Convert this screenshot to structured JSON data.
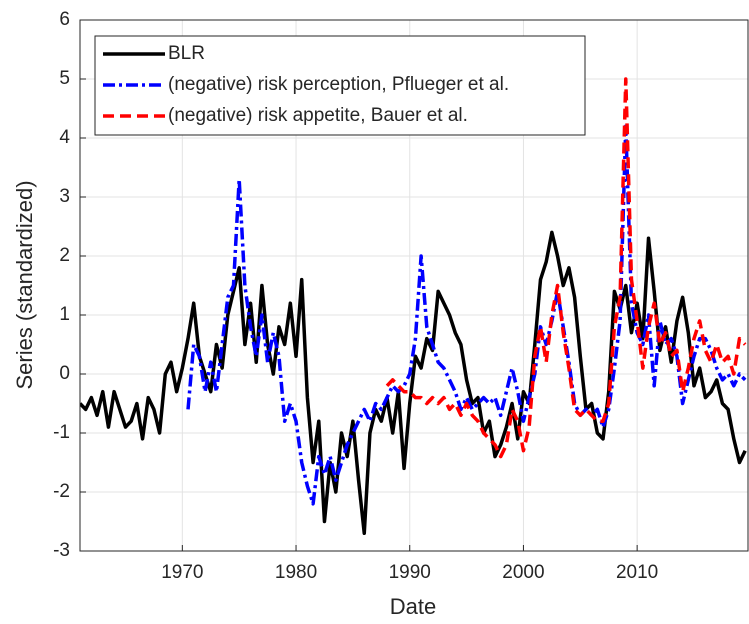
{
  "chart_data": {
    "type": "line",
    "xlabel": "Date",
    "ylabel": "Series (standardized)",
    "x": [
      1961,
      1961.5,
      1962,
      1962.5,
      1963,
      1963.5,
      1964,
      1964.5,
      1965,
      1965.5,
      1966,
      1966.5,
      1967,
      1967.5,
      1968,
      1968.5,
      1969,
      1969.5,
      1970,
      1970.5,
      1971,
      1971.5,
      1972,
      1972.5,
      1973,
      1973.5,
      1974,
      1974.5,
      1975,
      1975.5,
      1976,
      1976.5,
      1977,
      1977.5,
      1978,
      1978.5,
      1979,
      1979.5,
      1980,
      1980.5,
      1981,
      1981.5,
      1982,
      1982.5,
      1983,
      1983.5,
      1984,
      1984.5,
      1985,
      1985.5,
      1986,
      1986.5,
      1987,
      1987.5,
      1988,
      1988.5,
      1989,
      1989.5,
      1990,
      1990.5,
      1991,
      1991.5,
      1992,
      1992.5,
      1993,
      1993.5,
      1994,
      1994.5,
      1995,
      1995.5,
      1996,
      1996.5,
      1997,
      1997.5,
      1998,
      1998.5,
      1999,
      1999.5,
      2000,
      2000.5,
      2001,
      2001.5,
      2002,
      2002.5,
      2003,
      2003.5,
      2004,
      2004.5,
      2005,
      2005.5,
      2006,
      2006.5,
      2007,
      2007.5,
      2008,
      2008.5,
      2009,
      2009.5,
      2010,
      2010.5,
      2011,
      2011.5,
      2012,
      2012.5,
      2013,
      2013.5,
      2014,
      2014.5,
      2015,
      2015.5,
      2016,
      2016.5,
      2017,
      2017.5,
      2018,
      2018.5,
      2019,
      2019.5
    ],
    "series": [
      {
        "name": "BLR",
        "color": "#000000",
        "dash": "solid",
        "values": [
          -0.5,
          -0.6,
          -0.4,
          -0.7,
          -0.3,
          -0.9,
          -0.3,
          -0.6,
          -0.9,
          -0.8,
          -0.5,
          -1.1,
          -0.4,
          -0.6,
          -1.0,
          0.0,
          0.2,
          -0.3,
          0.1,
          0.6,
          1.2,
          0.3,
          0.0,
          -0.3,
          0.5,
          0.1,
          1.0,
          1.4,
          1.8,
          0.5,
          1.2,
          0.2,
          1.5,
          0.5,
          0.0,
          0.8,
          0.5,
          1.2,
          0.3,
          1.6,
          -0.4,
          -1.5,
          -0.8,
          -2.5,
          -1.5,
          -2.0,
          -1.0,
          -1.4,
          -0.8,
          -1.8,
          -2.7,
          -1.0,
          -0.6,
          -0.8,
          -0.4,
          -1.0,
          -0.3,
          -1.6,
          -0.5,
          0.3,
          0.1,
          0.6,
          0.4,
          1.4,
          1.2,
          1.0,
          0.7,
          0.5,
          -0.1,
          -0.5,
          -0.4,
          -1.0,
          -0.8,
          -1.4,
          -1.2,
          -0.9,
          -0.5,
          -1.1,
          -0.3,
          -0.5,
          0.5,
          1.6,
          1.9,
          2.4,
          2.0,
          1.5,
          1.8,
          1.3,
          0.3,
          -0.6,
          -0.5,
          -1.0,
          -1.1,
          -0.3,
          1.4,
          1.1,
          1.5,
          0.7,
          1.2,
          0.6,
          2.3,
          1.4,
          0.4,
          0.8,
          0.2,
          0.9,
          1.3,
          0.7,
          -0.2,
          0.1,
          -0.4,
          -0.3,
          -0.1,
          -0.5,
          -0.6,
          -1.1,
          -1.5,
          -1.3
        ]
      },
      {
        "name": "(negative) risk perception, Pflueger et al.",
        "color": "#0000ff",
        "dash": "dashdot",
        "values": [
          null,
          null,
          null,
          null,
          null,
          null,
          null,
          null,
          null,
          null,
          null,
          null,
          null,
          null,
          null,
          null,
          null,
          null,
          null,
          -0.6,
          0.5,
          0.3,
          -0.3,
          0.2,
          -0.3,
          0.5,
          1.3,
          1.5,
          3.3,
          1.5,
          0.8,
          0.3,
          1.0,
          0.2,
          0.7,
          0.3,
          -0.8,
          -0.5,
          -0.8,
          -1.5,
          -1.9,
          -2.2,
          -1.4,
          -1.7,
          -1.4,
          -1.8,
          -1.5,
          -1.2,
          -1.0,
          -0.8,
          -0.6,
          -0.8,
          -0.5,
          -0.6,
          -0.4,
          -0.2,
          -0.3,
          -0.2,
          0.0,
          0.6,
          2.0,
          0.8,
          0.5,
          0.2,
          0.1,
          -0.1,
          -0.3,
          -0.6,
          -0.4,
          -0.6,
          -0.5,
          -0.4,
          -0.5,
          -0.4,
          -0.7,
          -0.3,
          0.1,
          -0.3,
          -0.8,
          -0.4,
          0.0,
          0.8,
          0.5,
          0.9,
          1.4,
          0.8,
          0.2,
          -0.5,
          -0.7,
          -0.6,
          -0.7,
          -0.6,
          -0.9,
          -0.6,
          0.1,
          0.9,
          4.2,
          1.2,
          0.7,
          0.5,
          1.0,
          -0.2,
          0.9,
          0.5,
          0.6,
          0.3,
          -0.5,
          -0.1,
          0.3,
          0.6,
          0.6,
          0.4,
          0.1,
          -0.1,
          0.0,
          -0.2,
          0.0,
          -0.1
        ]
      },
      {
        "name": "(negative) risk appetite, Bauer et al.",
        "color": "#ff0000",
        "dash": "dashed",
        "values": [
          null,
          null,
          null,
          null,
          null,
          null,
          null,
          null,
          null,
          null,
          null,
          null,
          null,
          null,
          null,
          null,
          null,
          null,
          null,
          null,
          null,
          null,
          null,
          null,
          null,
          null,
          null,
          null,
          null,
          null,
          null,
          null,
          null,
          null,
          null,
          null,
          null,
          null,
          null,
          null,
          null,
          null,
          null,
          null,
          null,
          null,
          null,
          null,
          null,
          null,
          null,
          null,
          null,
          null,
          -0.2,
          -0.1,
          -0.2,
          -0.3,
          -0.3,
          -0.4,
          -0.4,
          -0.5,
          -0.4,
          -0.5,
          -0.4,
          -0.6,
          -0.5,
          -0.7,
          -0.5,
          -0.7,
          -0.8,
          -1.0,
          -1.1,
          -1.2,
          -1.4,
          -1.2,
          -0.6,
          -0.8,
          -1.3,
          -0.9,
          0.3,
          0.8,
          0.2,
          1.0,
          1.5,
          0.7,
          0.1,
          -0.6,
          -0.7,
          -0.6,
          -0.7,
          -0.8,
          -0.8,
          -0.5,
          0.8,
          1.3,
          5.0,
          1.6,
          0.9,
          0.1,
          0.8,
          1.2,
          0.5,
          0.7,
          0.3,
          0.4,
          -0.3,
          0.1,
          0.6,
          0.9,
          0.4,
          0.2,
          0.5,
          0.2,
          0.3,
          0.0,
          0.6,
          0.5
        ]
      }
    ],
    "xlim": [
      1961,
      2019.75
    ],
    "xticks": [
      1970,
      1980,
      1990,
      2000,
      2010
    ],
    "ylim": [
      -3,
      6
    ],
    "yticks": [
      -3,
      -2,
      -1,
      0,
      1,
      2,
      3,
      4,
      5,
      6
    ],
    "grid": true,
    "legend": "northwest"
  }
}
